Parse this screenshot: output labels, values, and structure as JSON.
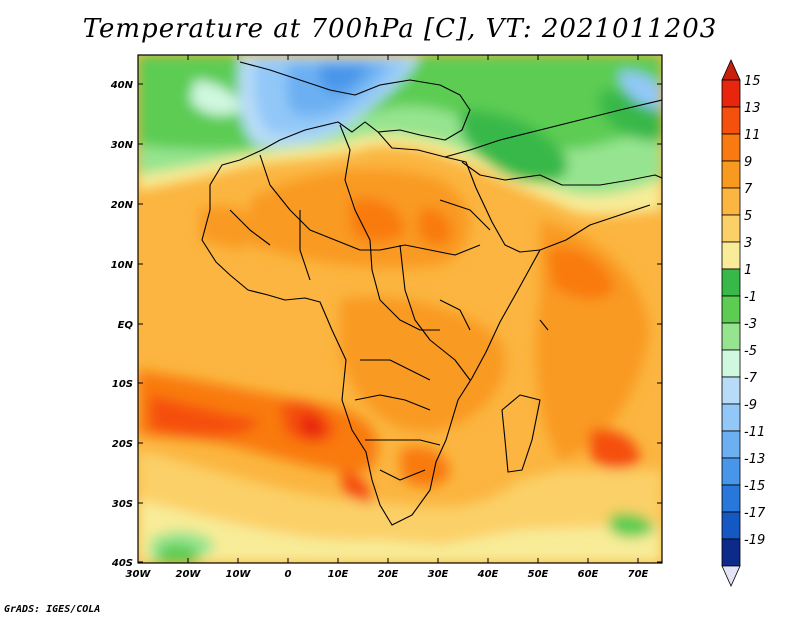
{
  "title": "Temperature at 700hPa [C], VT: 2021011203",
  "credit": "GrADS: IGES/COLA",
  "map": {
    "lon_labels": [
      "30W",
      "20W",
      "10W",
      "0",
      "10E",
      "20E",
      "30E",
      "40E",
      "50E",
      "60E",
      "70E"
    ],
    "lat_labels": [
      "40N",
      "30N",
      "20N",
      "10N",
      "EQ",
      "10S",
      "20S",
      "30S",
      "40S"
    ]
  },
  "colorbar": {
    "labels": [
      "15",
      "13",
      "11",
      "9",
      "7",
      "5",
      "3",
      "1",
      "-1",
      "-3",
      "-5",
      "-7",
      "-9",
      "-11",
      "-13",
      "-15",
      "-17",
      "-19"
    ],
    "colors": [
      "#e8250d",
      "#f5500d",
      "#f97a10",
      "#f99a20",
      "#fbb540",
      "#fbd068",
      "#f8ec98",
      "#38b848",
      "#5ccc52",
      "#96e490",
      "#d0f8e0",
      "#b8dcf8",
      "#92c8f8",
      "#6cb0f2",
      "#4896ea",
      "#2878dc",
      "#1458c4",
      "#0c2a8a"
    ],
    "top_color": "#c81e0c",
    "bottom_color": "#e4e4f8"
  }
}
